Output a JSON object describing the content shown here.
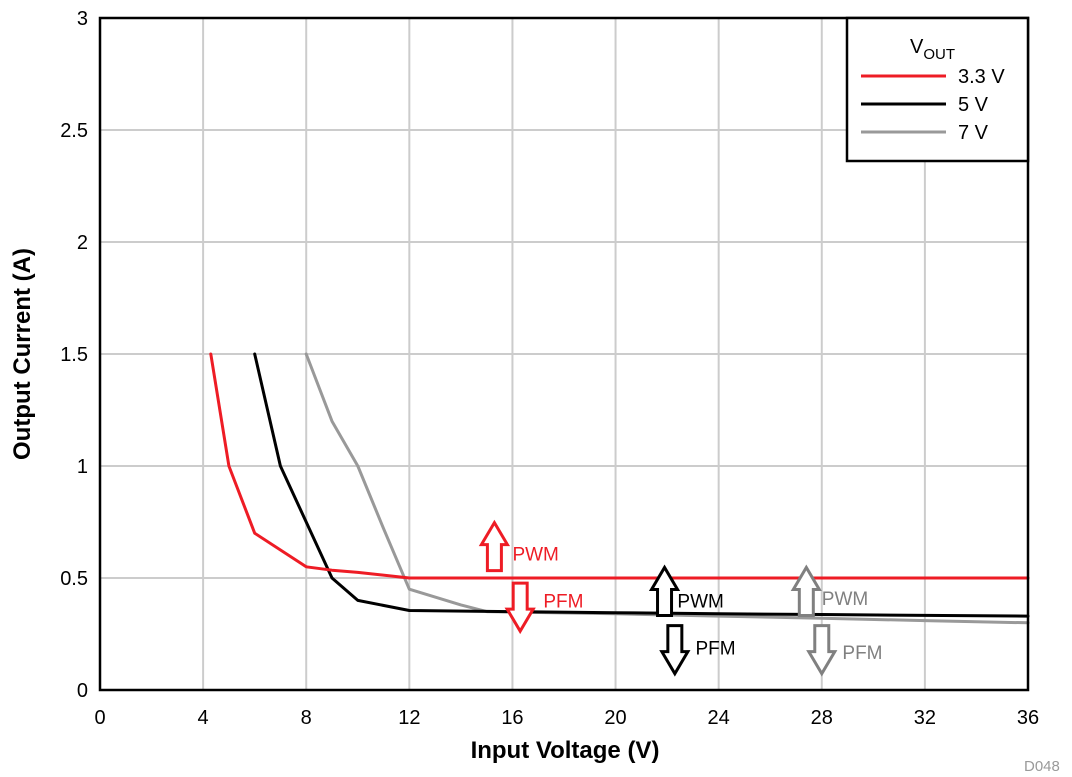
{
  "chart_data": {
    "type": "line",
    "title": "",
    "xlabel": "Input Voltage (V)",
    "ylabel": "Output Current (A)",
    "xlim": [
      0,
      36
    ],
    "ylim": [
      0,
      3
    ],
    "xticks": [
      0,
      4,
      8,
      12,
      16,
      20,
      24,
      28,
      32,
      36
    ],
    "yticks": [
      0,
      0.5,
      1,
      1.5,
      2,
      2.5,
      3
    ],
    "ytick_labels": [
      "0",
      "0.5",
      "1",
      "1.5",
      "2",
      "2.5",
      "3"
    ],
    "grid": true,
    "legend": {
      "title_main": "V",
      "title_sub": "OUT",
      "position": "top-right"
    },
    "series": [
      {
        "name": "3.3 V",
        "color": "#ee1c25",
        "x": [
          4.3,
          5,
          6,
          8,
          9,
          10,
          12,
          16,
          20,
          24,
          28,
          32,
          36
        ],
        "y": [
          1.5,
          1.0,
          0.7,
          0.55,
          0.535,
          0.525,
          0.5,
          0.5,
          0.5,
          0.5,
          0.5,
          0.5,
          0.5
        ]
      },
      {
        "name": "5 V",
        "color": "#000000",
        "x": [
          6,
          7,
          8,
          9,
          10,
          12,
          16,
          20,
          24,
          28,
          32,
          36
        ],
        "y": [
          1.5,
          1.0,
          0.75,
          0.5,
          0.4,
          0.355,
          0.35,
          0.345,
          0.34,
          0.337,
          0.333,
          0.33
        ]
      },
      {
        "name": "7 V",
        "color": "#999999",
        "x": [
          8,
          9,
          10,
          11,
          12,
          14,
          15,
          20,
          24,
          28,
          32,
          36
        ],
        "y": [
          1.5,
          1.2,
          1.0,
          0.72,
          0.45,
          0.38,
          0.35,
          0.34,
          0.33,
          0.32,
          0.31,
          0.3
        ]
      }
    ],
    "annotations": [
      {
        "text": "PWM",
        "color": "#ee1c25",
        "dir": "up",
        "arrow_x": 15.3,
        "arrow_y": 0.64,
        "label_x": 16.0,
        "label_y": 0.61
      },
      {
        "text": "PFM",
        "color": "#ee1c25",
        "dir": "down",
        "arrow_x": 16.3,
        "arrow_y": 0.37,
        "label_x": 17.2,
        "label_y": 0.4
      },
      {
        "text": "PWM",
        "color": "#000000",
        "dir": "up",
        "arrow_x": 21.9,
        "arrow_y": 0.44,
        "label_x": 22.4,
        "label_y": 0.4
      },
      {
        "text": "PFM",
        "color": "#000000",
        "dir": "down",
        "arrow_x": 22.3,
        "arrow_y": 0.18,
        "label_x": 23.1,
        "label_y": 0.19
      },
      {
        "text": "PWM",
        "color": "#808080",
        "dir": "up",
        "arrow_x": 27.4,
        "arrow_y": 0.44,
        "label_x": 28.0,
        "label_y": 0.41
      },
      {
        "text": "PFM",
        "color": "#808080",
        "dir": "down",
        "arrow_x": 28.0,
        "arrow_y": 0.18,
        "label_x": 28.8,
        "label_y": 0.17
      }
    ],
    "footnote": "D048"
  }
}
